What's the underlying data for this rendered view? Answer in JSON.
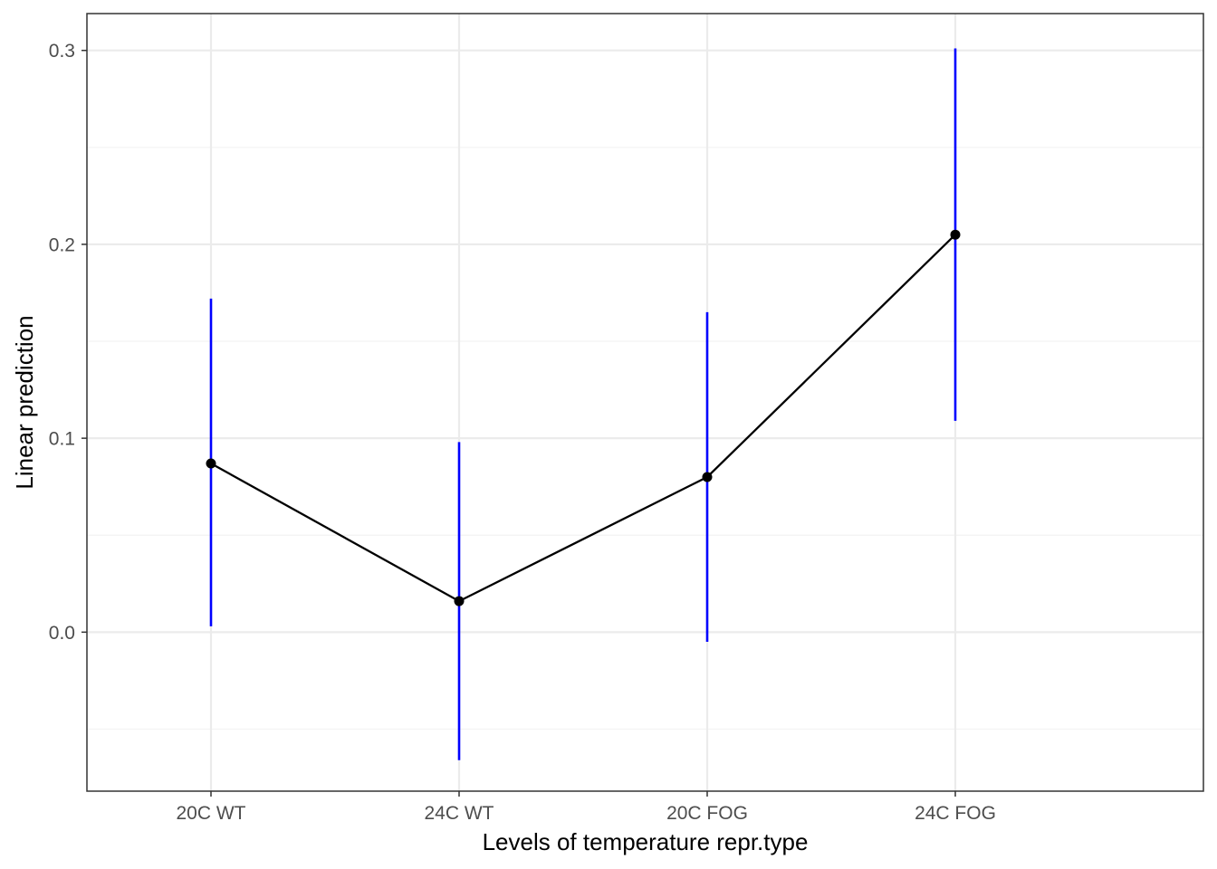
{
  "chart_data": {
    "type": "line",
    "title": "",
    "xlabel": "Levels of temperature repr.type",
    "ylabel": "Linear prediction",
    "categories": [
      "20C WT",
      "24C WT",
      "20C FOG",
      "24C FOG"
    ],
    "series": [
      {
        "values": [
          0.087,
          0.016,
          0.08,
          0.205
        ],
        "ci_lower": [
          0.003,
          -0.066,
          -0.005,
          0.109
        ],
        "ci_upper": [
          0.172,
          0.098,
          0.165,
          0.301
        ]
      }
    ],
    "yticks": [
      0.0,
      0.1,
      0.2,
      0.3
    ],
    "ytick_labels": [
      "0.0",
      "0.1",
      "0.2",
      "0.3"
    ],
    "ylim": [
      -0.082,
      0.319
    ],
    "grid": true,
    "legend": "none",
    "colors": {
      "line": "#000000",
      "point": "#000000",
      "error_bar": "#0000ff",
      "grid_major": "#ebebeb",
      "grid_minor": "#f3f3f3",
      "panel_border": "#333333",
      "tick_label": "#4d4d4d"
    }
  }
}
